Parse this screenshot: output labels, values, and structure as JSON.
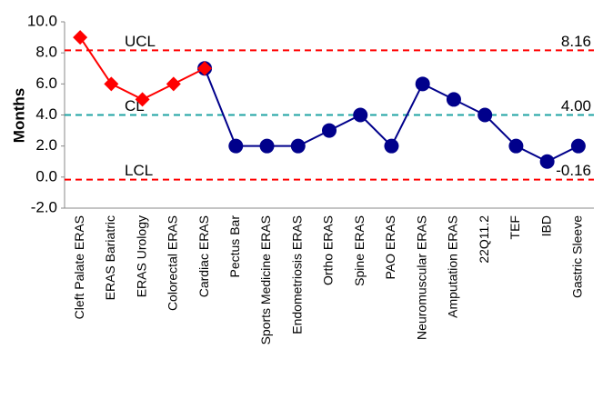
{
  "chart_data": {
    "type": "line",
    "y_label": "Months",
    "categories": [
      "Cleft Palate ERAS",
      "ERAS Bariatric",
      "ERAS Urology",
      "Colorectal ERAS",
      "Cardiac ERAS",
      "Pectus Bar",
      "Sports Medicine ERAS",
      "Endometriosis ERAS",
      "Ortho ERAS",
      "Spine ERAS",
      "PAO ERAS",
      "Neuromuscular ERAS",
      "Amputation ERAS",
      "22Q11.2",
      "TEF",
      "IBD",
      "Gastric Sleeve"
    ],
    "series": [
      {
        "color": "#00008b",
        "marker": "circle",
        "values": [
          null,
          null,
          null,
          null,
          7,
          2,
          2,
          2,
          3,
          4,
          2,
          6,
          5,
          4,
          2,
          1,
          2
        ]
      },
      {
        "color": "#ff0000",
        "marker": "diamond",
        "values": [
          9,
          6,
          5,
          6,
          7,
          null,
          null,
          null,
          null,
          null,
          null,
          null,
          null,
          null,
          null,
          null,
          null
        ]
      }
    ],
    "reference_lines": [
      {
        "name": "UCL",
        "value": 8.16,
        "label": "8.16",
        "color": "#ff0000"
      },
      {
        "name": "CL",
        "value": 4.0,
        "label": "4.00",
        "color": "#1fa3a3"
      },
      {
        "name": "LCL",
        "value": -0.16,
        "label": "-0.16",
        "color": "#ff0000"
      }
    ],
    "ylim": [
      -2,
      10
    ],
    "yticks": [
      {
        "value": -2,
        "label": "-2.0"
      },
      {
        "value": 0,
        "label": "0.0"
      },
      {
        "value": 2,
        "label": "2.0"
      },
      {
        "value": 4,
        "label": "4.0"
      },
      {
        "value": 6,
        "label": "6.0"
      },
      {
        "value": 8,
        "label": "8.0"
      },
      {
        "value": 10,
        "label": "10.0"
      }
    ],
    "grid": false
  }
}
